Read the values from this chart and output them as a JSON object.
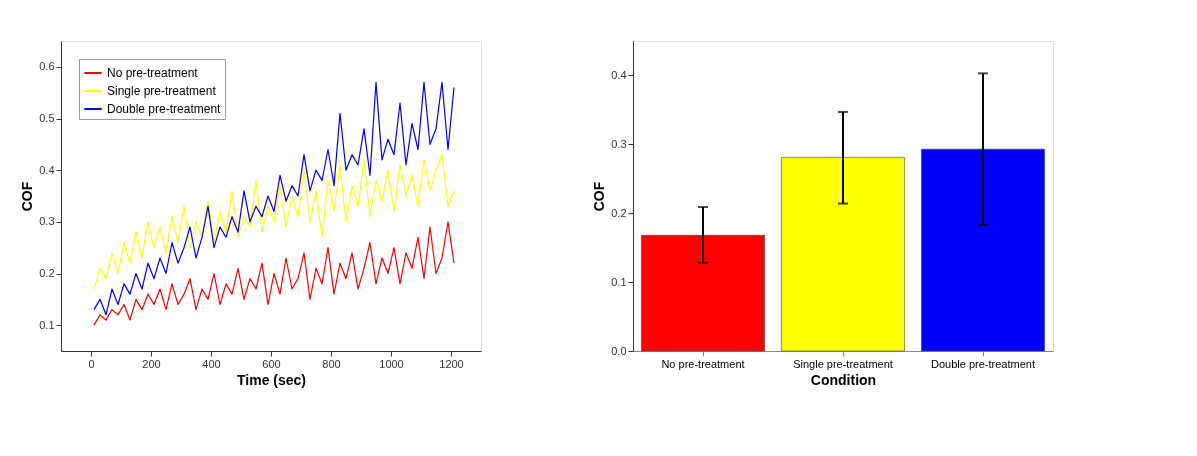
{
  "chart_data": [
    {
      "type": "line",
      "xlabel": "Time (sec)",
      "ylabel": "COF",
      "xlim": [
        -100,
        1300
      ],
      "xticks": [
        0,
        200,
        400,
        600,
        800,
        1000,
        1200
      ],
      "ylim": [
        0.05,
        0.65
      ],
      "yticks": [
        0.1,
        0.2,
        0.3,
        0.4,
        0.5,
        0.6
      ],
      "grid": false,
      "legend": "top left",
      "marker": "none",
      "line_style": "solid",
      "x": [
        10,
        30,
        50,
        70,
        90,
        110,
        130,
        150,
        170,
        190,
        210,
        230,
        250,
        270,
        290,
        310,
        330,
        350,
        370,
        390,
        410,
        430,
        450,
        470,
        490,
        510,
        530,
        550,
        570,
        590,
        610,
        630,
        650,
        670,
        690,
        710,
        730,
        750,
        770,
        790,
        810,
        830,
        850,
        870,
        890,
        910,
        930,
        950,
        970,
        990,
        1010,
        1030,
        1050,
        1070,
        1090,
        1110,
        1130,
        1150,
        1170,
        1190,
        1210
      ],
      "series": [
        {
          "name": "No pre-treatment",
          "color": "#ff0000",
          "values": [
            0.1,
            0.12,
            0.11,
            0.13,
            0.12,
            0.14,
            0.11,
            0.15,
            0.13,
            0.16,
            0.14,
            0.17,
            0.13,
            0.18,
            0.14,
            0.16,
            0.19,
            0.13,
            0.17,
            0.15,
            0.2,
            0.14,
            0.18,
            0.16,
            0.21,
            0.15,
            0.19,
            0.17,
            0.22,
            0.14,
            0.2,
            0.16,
            0.23,
            0.17,
            0.19,
            0.24,
            0.15,
            0.21,
            0.18,
            0.25,
            0.16,
            0.22,
            0.19,
            0.24,
            0.17,
            0.21,
            0.26,
            0.18,
            0.23,
            0.2,
            0.25,
            0.18,
            0.24,
            0.21,
            0.27,
            0.19,
            0.29,
            0.2,
            0.23,
            0.3,
            0.22
          ]
        },
        {
          "name": "Single pre-treatment",
          "color": "#ffff00",
          "values": [
            0.17,
            0.21,
            0.19,
            0.24,
            0.2,
            0.26,
            0.22,
            0.28,
            0.23,
            0.3,
            0.25,
            0.29,
            0.24,
            0.31,
            0.26,
            0.33,
            0.25,
            0.3,
            0.27,
            0.34,
            0.26,
            0.32,
            0.28,
            0.36,
            0.27,
            0.31,
            0.29,
            0.38,
            0.28,
            0.33,
            0.3,
            0.37,
            0.29,
            0.35,
            0.31,
            0.4,
            0.3,
            0.36,
            0.27,
            0.38,
            0.32,
            0.41,
            0.3,
            0.37,
            0.33,
            0.42,
            0.31,
            0.38,
            0.34,
            0.4,
            0.32,
            0.41,
            0.35,
            0.39,
            0.33,
            0.42,
            0.36,
            0.4,
            0.43,
            0.33,
            0.36
          ]
        },
        {
          "name": "Double pre-treatment",
          "color": "#0000ff",
          "values": [
            0.13,
            0.15,
            0.12,
            0.17,
            0.14,
            0.18,
            0.16,
            0.2,
            0.17,
            0.22,
            0.19,
            0.23,
            0.2,
            0.26,
            0.22,
            0.25,
            0.29,
            0.23,
            0.27,
            0.33,
            0.25,
            0.29,
            0.27,
            0.31,
            0.28,
            0.36,
            0.3,
            0.33,
            0.31,
            0.35,
            0.32,
            0.39,
            0.34,
            0.37,
            0.35,
            0.43,
            0.36,
            0.4,
            0.38,
            0.44,
            0.37,
            0.51,
            0.4,
            0.43,
            0.41,
            0.48,
            0.39,
            0.57,
            0.42,
            0.46,
            0.43,
            0.53,
            0.41,
            0.49,
            0.44,
            0.57,
            0.45,
            0.48,
            0.57,
            0.44,
            0.56
          ]
        }
      ]
    },
    {
      "type": "bar",
      "xlabel": "Condition",
      "ylabel": "COF",
      "ylim": [
        0,
        0.45
      ],
      "yticks": [
        {
          "value": 0,
          "label": "0.0"
        },
        0.1,
        0.2,
        0.3,
        0.4
      ],
      "grid": false,
      "categories": [
        "No pre-treatment",
        "Single pre-treatment",
        "Double pre-treatment"
      ],
      "values": [
        0.168,
        0.281,
        0.293
      ],
      "colors": [
        "#ff0000",
        "#ffff00",
        "#0000ff"
      ],
      "errors": [
        [
          0.128,
          0.209
        ],
        [
          0.214,
          0.347
        ],
        [
          0.183,
          0.403
        ]
      ]
    }
  ]
}
